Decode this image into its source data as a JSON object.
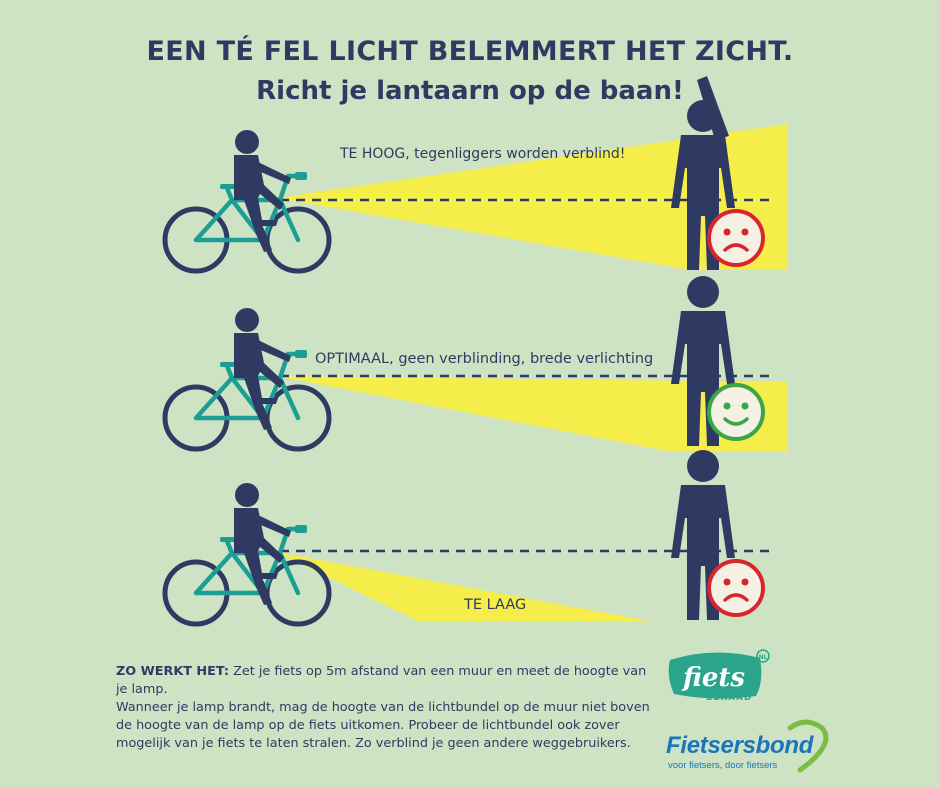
{
  "header": {
    "title": "EEN TÉ FEL LICHT BELEMMERT HET ZICHT.",
    "subtitle": "Richt je lantaarn op de baan!"
  },
  "scenes": [
    {
      "caption": "TE HOOG, tegenliggers worden verblind!",
      "mood": "sad"
    },
    {
      "caption": "OPTIMAAL, geen verblinding, brede verlichting",
      "mood": "happy"
    },
    {
      "caption": "TE LAAG",
      "mood": "sad"
    }
  ],
  "info": {
    "lead": "ZO WERKT HET:",
    "text1": " Zet je fiets op 5m afstand van een muur en meet de hoogte van je lamp.",
    "text2": "Wanneer je lamp brandt, mag de hoogte van de lichtbundel op de muur niet boven de hoogte van de lamp op de fiets uitkomen. Probeer de lichtbundel ook zover mogelijk van je fiets te laten stralen. Zo verblind je geen andere weggebruikers."
  },
  "logos": {
    "fiets_word": "fiets",
    "fiets_sub": "BERAAD",
    "fiets_badge": "NL",
    "bond_name": "Fietsersbond",
    "bond_tagline": "voor fietsers, door fietsers"
  },
  "colors": {
    "background": "#cde3c3",
    "navy": "#2f3a62",
    "beam": "#f5ee4a",
    "bike": "#1c9e94",
    "sad": "#d8262e",
    "happy": "#3aa447",
    "brand_green": "#2aa58b",
    "brand_blue": "#1b75bb"
  }
}
